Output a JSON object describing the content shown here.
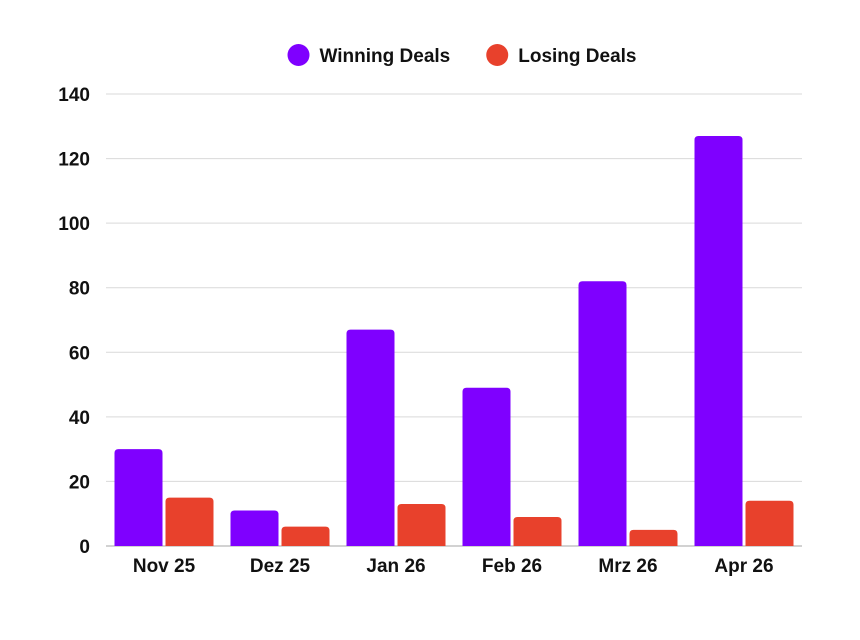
{
  "chart_data": {
    "type": "bar",
    "categories": [
      "Nov 25",
      "Dez 25",
      "Jan 26",
      "Feb 26",
      "Mrz 26",
      "Apr 26"
    ],
    "series": [
      {
        "name": "Winning Deals",
        "color": "#7f00ff",
        "values": [
          30,
          11,
          67,
          49,
          82,
          127
        ]
      },
      {
        "name": "Losing Deals",
        "color": "#e8412c",
        "values": [
          15,
          6,
          13,
          9,
          5,
          14
        ]
      }
    ],
    "title": "",
    "xlabel": "",
    "ylabel": "",
    "ylim": [
      0,
      140
    ],
    "yticks": [
      0,
      20,
      40,
      60,
      80,
      100,
      120,
      140
    ],
    "grid": true,
    "legend_position": "top-center"
  }
}
